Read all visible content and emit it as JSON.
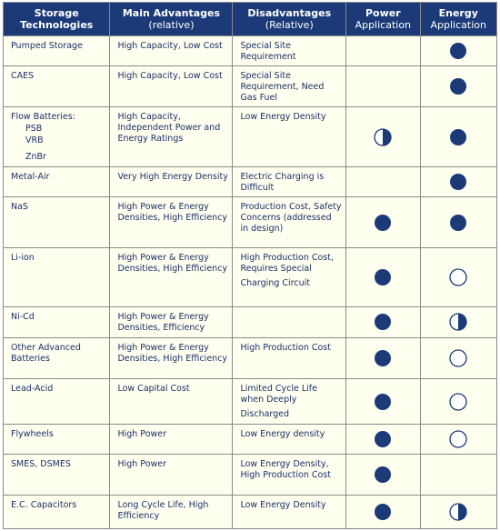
{
  "colors": {
    "header_bg": "#1c3a78",
    "header_text": "#ffffff",
    "cell_bg": "#fffff0",
    "cell_text": "#1a2f66",
    "border": "#8a8a8a",
    "symbol": "#1c3a78"
  },
  "icon_legend": {
    "full": "full-circle-icon",
    "half": "half-circle-icon",
    "empty": "empty-circle-icon"
  },
  "headers": {
    "tech": "Storage Technologies",
    "adv_title": "Main Advantages",
    "adv_sub": "(relative)",
    "dis_title": "Disadvantages",
    "dis_sub": "(Relative)",
    "power_title": "Power",
    "power_sub": "Application",
    "energy_title": "Energy",
    "energy_sub": "Application"
  },
  "rows": [
    {
      "tech": "Pumped Storage",
      "adv": "High Capacity, Low Cost",
      "dis": "Special Site Requirement",
      "power": "none",
      "energy": "full"
    },
    {
      "tech": "CAES",
      "adv": "High Capacity, Low Cost",
      "dis": "Special Site Requirement, Need Gas Fuel",
      "power": "none",
      "energy": "full"
    },
    {
      "tech": "Flow Batteries:",
      "subtech": [
        "PSB",
        "VRB",
        "ZnBr"
      ],
      "adv": "High Capacity, Independent Power and Energy Ratings",
      "dis": "Low Energy Density",
      "power": "half",
      "energy": "full"
    },
    {
      "tech": "Metal-Air",
      "adv": "Very High Energy Density",
      "dis": "Electric Charging is Difficult",
      "power": "none",
      "energy": "full"
    },
    {
      "tech": "NaS",
      "adv": "High Power & Energy Densities, High Efficiency",
      "dis": "Production Cost, Safety Concerns (addressed in design)",
      "power": "full",
      "energy": "full"
    },
    {
      "tech": "Li-ion",
      "adv": "High Power & Energy Densities, High Efficiency",
      "dis": "High Production Cost, Requires Special",
      "dis2": "Charging Circuit",
      "power": "full",
      "energy": "empty"
    },
    {
      "tech": "Ni-Cd",
      "adv": "High Power & Energy Densities, Efficiency",
      "dis": "",
      "power": "full",
      "energy": "half"
    },
    {
      "tech": "Other Advanced Batteries",
      "adv": "High Power & Energy Densities, High Efficiency",
      "dis": "High Production Cost",
      "power": "full",
      "energy": "empty"
    },
    {
      "tech": "Lead-Acid",
      "adv": "Low Capital Cost",
      "dis": "Limited Cycle Life when Deeply",
      "dis2": "Discharged",
      "power": "full",
      "energy": "empty"
    },
    {
      "tech": "Flywheels",
      "adv": "High Power",
      "dis": "Low Energy density",
      "power": "full",
      "energy": "empty"
    },
    {
      "tech": "SMES, DSMES",
      "adv": "High Power",
      "dis": "Low Energy Density, High Production Cost",
      "power": "full",
      "energy": "none"
    },
    {
      "tech": "E.C. Capacitors",
      "adv": "Long Cycle Life, High Efficiency",
      "dis": "Low Energy Density",
      "power": "full",
      "energy": "half"
    }
  ]
}
